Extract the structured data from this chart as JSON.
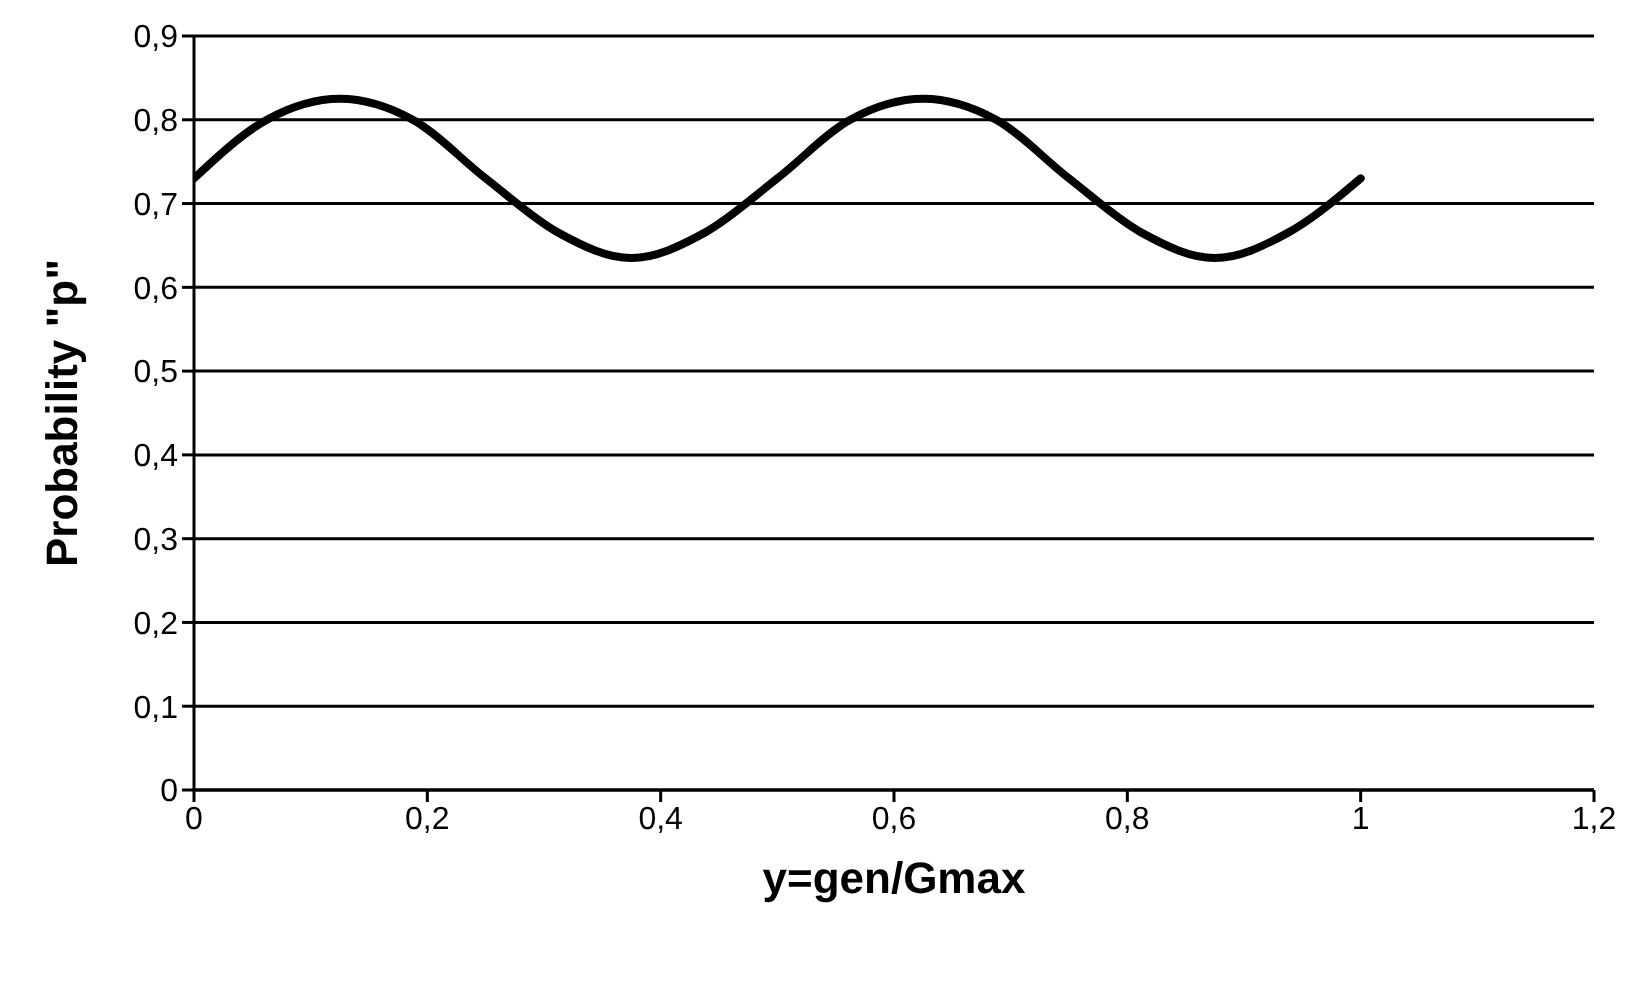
{
  "chart_data": {
    "type": "line",
    "xlabel": "y=gen/Gmax",
    "ylabel": "Probability \"p\"",
    "x": [
      0,
      0.0625,
      0.125,
      0.1875,
      0.25,
      0.3125,
      0.375,
      0.4375,
      0.5,
      0.5625,
      0.625,
      0.6875,
      0.75,
      0.8125,
      0.875,
      0.9375,
      1
    ],
    "series": [
      {
        "color": "#000000",
        "values": [
          0.73,
          0.8,
          0.825,
          0.8,
          0.73,
          0.665,
          0.635,
          0.665,
          0.73,
          0.8,
          0.825,
          0.8,
          0.73,
          0.665,
          0.635,
          0.665,
          0.73
        ]
      }
    ],
    "xlim": [
      0,
      1.2
    ],
    "xticks": [
      0,
      {
        "value": 0.2,
        "label": "0,2"
      },
      {
        "value": 0.4,
        "label": "0,4"
      },
      {
        "value": 0.6,
        "label": "0,6"
      },
      {
        "value": 0.8,
        "label": "0,8"
      },
      1,
      {
        "value": 1.2,
        "label": "1,2"
      }
    ],
    "ylim": [
      0,
      0.9
    ],
    "yticks": [
      0,
      {
        "value": 0.1,
        "label": "0,1"
      },
      {
        "value": 0.2,
        "label": "0,2"
      },
      {
        "value": 0.3,
        "label": "0,3"
      },
      {
        "value": 0.4,
        "label": "0,4"
      },
      {
        "value": 0.5,
        "label": "0,5"
      },
      {
        "value": 0.6,
        "label": "0,6"
      },
      {
        "value": 0.7,
        "label": "0,7"
      },
      {
        "value": 0.8,
        "label": "0,8"
      },
      {
        "value": 0.9,
        "label": "0,9"
      }
    ],
    "grid": "y",
    "legend": false,
    "marker": "none",
    "line_style": "solid"
  }
}
